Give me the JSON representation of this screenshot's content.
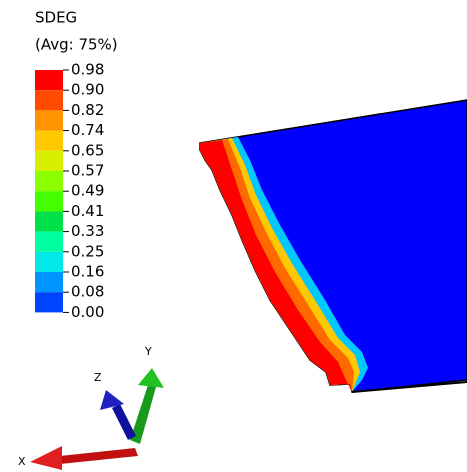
{
  "legend": {
    "title": "SDEG",
    "subtitle": "(Avg: 75%)",
    "labels": [
      "0.98",
      "0.90",
      "0.82",
      "0.74",
      "0.65",
      "0.57",
      "0.49",
      "0.41",
      "0.33",
      "0.25",
      "0.16",
      "0.08",
      "0.00"
    ]
  },
  "triad": {
    "x": "X",
    "y": "Y",
    "z": "Z"
  }
}
